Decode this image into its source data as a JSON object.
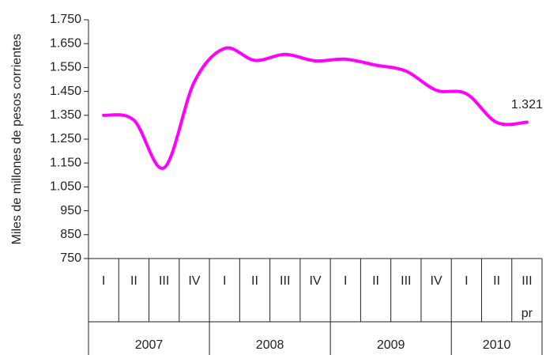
{
  "chart_data": {
    "type": "line",
    "y_axis_label": "Miles de millones de pesos corrientes",
    "categories": [
      "I",
      "II",
      "III",
      "IV",
      "I",
      "II",
      "III",
      "IV",
      "I",
      "II",
      "III",
      "IV",
      "I",
      "II",
      "III"
    ],
    "category_note": "pr",
    "year_labels": [
      "2007",
      "2008",
      "2009",
      "2010"
    ],
    "series": [
      {
        "color": "#ff00ff",
        "values": [
          1350,
          1330,
          1130,
          1490,
          1630,
          1580,
          1605,
          1578,
          1585,
          1560,
          1535,
          1455,
          1440,
          1320,
          1321
        ],
        "value_labels": [
          null,
          null,
          null,
          null,
          null,
          null,
          null,
          null,
          null,
          null,
          null,
          null,
          null,
          null,
          "1.321"
        ]
      }
    ],
    "ylim": [
      750,
      1750
    ],
    "yticks": [
      750,
      850,
      950,
      {
        "value": 1050,
        "label": "1.050"
      },
      {
        "value": 1150,
        "label": "1.150"
      },
      {
        "value": 1250,
        "label": "1.250"
      },
      {
        "value": 1350,
        "label": "1.350"
      },
      {
        "value": 1450,
        "label": "1.450"
      },
      {
        "value": 1550,
        "label": "1.550"
      },
      {
        "value": 1650,
        "label": "1.650"
      },
      {
        "value": 1750,
        "label": "1.750"
      }
    ]
  }
}
